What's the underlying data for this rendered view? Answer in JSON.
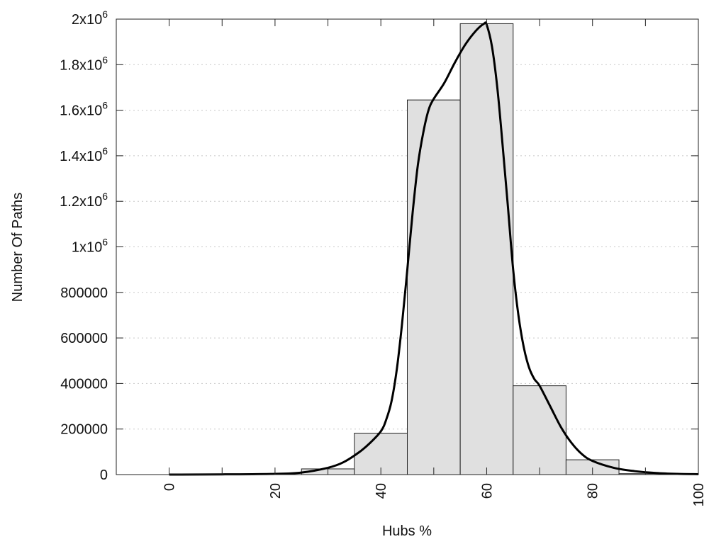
{
  "chart_data": {
    "type": "bar",
    "xlabel": "Hubs %",
    "ylabel": "Number Of Paths",
    "xlim": [
      -10,
      100
    ],
    "ylim": [
      0,
      2000000
    ],
    "grid": true,
    "bar_fill": "#e0e0e0",
    "bar_stroke": "#222222",
    "line_color": "#000000",
    "grid_color": "#c8c8c8",
    "x_ticks": [
      {
        "value": 0,
        "label": "0"
      },
      {
        "value": 20,
        "label": "20"
      },
      {
        "value": 40,
        "label": "40"
      },
      {
        "value": 60,
        "label": "60"
      },
      {
        "value": 80,
        "label": "80"
      },
      {
        "value": 100,
        "label": "100"
      }
    ],
    "y_ticks": [
      {
        "value": 0,
        "mantissa": "0",
        "exp": ""
      },
      {
        "value": 200000,
        "mantissa": "200000",
        "exp": ""
      },
      {
        "value": 400000,
        "mantissa": "400000",
        "exp": ""
      },
      {
        "value": 600000,
        "mantissa": "600000",
        "exp": ""
      },
      {
        "value": 800000,
        "mantissa": "800000",
        "exp": ""
      },
      {
        "value": 1000000,
        "mantissa": "1x10",
        "exp": "6"
      },
      {
        "value": 1200000,
        "mantissa": "1.2x10",
        "exp": "6"
      },
      {
        "value": 1400000,
        "mantissa": "1.4x10",
        "exp": "6"
      },
      {
        "value": 1600000,
        "mantissa": "1.6x10",
        "exp": "6"
      },
      {
        "value": 1800000,
        "mantissa": "1.8x10",
        "exp": "6"
      },
      {
        "value": 2000000,
        "mantissa": "2x10",
        "exp": "6"
      }
    ],
    "bins": [
      {
        "x0": 25,
        "x1": 35,
        "value": 25000
      },
      {
        "x0": 35,
        "x1": 45,
        "value": 182000
      },
      {
        "x0": 45,
        "x1": 55,
        "value": 1645000
      },
      {
        "x0": 55,
        "x1": 65,
        "value": 1980000
      },
      {
        "x0": 65,
        "x1": 75,
        "value": 390000
      },
      {
        "x0": 75,
        "x1": 85,
        "value": 65000
      },
      {
        "x0": 85,
        "x1": 95,
        "value": 4000
      }
    ],
    "fit_curve": [
      [
        0,
        0
      ],
      [
        10,
        800
      ],
      [
        20,
        3000
      ],
      [
        25,
        9000
      ],
      [
        30,
        30000
      ],
      [
        33,
        55000
      ],
      [
        36,
        100000
      ],
      [
        38,
        140000
      ],
      [
        40,
        190000
      ],
      [
        41,
        240000
      ],
      [
        42,
        320000
      ],
      [
        43,
        460000
      ],
      [
        44,
        660000
      ],
      [
        45,
        900000
      ],
      [
        46,
        1150000
      ],
      [
        47,
        1360000
      ],
      [
        48,
        1500000
      ],
      [
        49,
        1600000
      ],
      [
        50,
        1650000
      ],
      [
        52,
        1720000
      ],
      [
        54,
        1810000
      ],
      [
        56,
        1890000
      ],
      [
        58,
        1950000
      ],
      [
        59.5,
        1980000
      ],
      [
        60,
        1975000
      ],
      [
        61,
        1880000
      ],
      [
        62,
        1700000
      ],
      [
        63,
        1450000
      ],
      [
        64,
        1180000
      ],
      [
        65,
        900000
      ],
      [
        66,
        700000
      ],
      [
        67,
        560000
      ],
      [
        68,
        470000
      ],
      [
        69,
        420000
      ],
      [
        70,
        390000
      ],
      [
        72,
        300000
      ],
      [
        74,
        210000
      ],
      [
        76,
        140000
      ],
      [
        78,
        90000
      ],
      [
        80,
        60000
      ],
      [
        84,
        30000
      ],
      [
        88,
        15000
      ],
      [
        92,
        7000
      ],
      [
        96,
        3000
      ],
      [
        100,
        1500
      ]
    ]
  }
}
